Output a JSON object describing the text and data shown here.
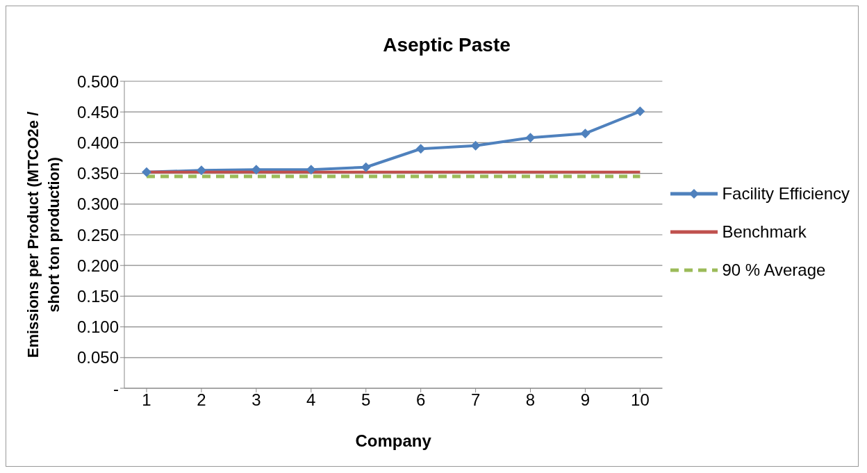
{
  "chart_data": {
    "type": "line",
    "title": "Aseptic Paste",
    "xlabel": "Company",
    "ylabel": "Emissions per Product (MTCO2e / short ton production)",
    "categories": [
      "1",
      "2",
      "3",
      "4",
      "5",
      "6",
      "7",
      "8",
      "9",
      "10"
    ],
    "series": [
      {
        "name": "Facility Efficiency",
        "color": "#4f81bd",
        "marker": "diamond",
        "line_style": "solid",
        "values": [
          0.352,
          0.355,
          0.356,
          0.356,
          0.36,
          0.39,
          0.395,
          0.408,
          0.415,
          0.451
        ]
      },
      {
        "name": "Benchmark",
        "color": "#c0504d",
        "marker": "none",
        "line_style": "solid",
        "values": [
          0.352,
          0.352,
          0.352,
          0.352,
          0.352,
          0.352,
          0.352,
          0.352,
          0.352,
          0.352
        ]
      },
      {
        "name": "90 % Average",
        "color": "#9bbb59",
        "marker": "none",
        "line_style": "dashed",
        "values": [
          0.345,
          0.345,
          0.345,
          0.345,
          0.345,
          0.345,
          0.345,
          0.345,
          0.345,
          0.345
        ]
      }
    ],
    "ylim": [
      0,
      0.5
    ],
    "yticks": [
      {
        "value": 0,
        "label": "-"
      },
      {
        "value": 0.05,
        "label": "0.050"
      },
      {
        "value": 0.1,
        "label": "0.100"
      },
      {
        "value": 0.15,
        "label": "0.150"
      },
      {
        "value": 0.2,
        "label": "0.200"
      },
      {
        "value": 0.25,
        "label": "0.250"
      },
      {
        "value": 0.3,
        "label": "0.300"
      },
      {
        "value": 0.35,
        "label": "0.350"
      },
      {
        "value": 0.4,
        "label": "0.400"
      },
      {
        "value": 0.45,
        "label": "0.450"
      },
      {
        "value": 0.5,
        "label": "0.500"
      }
    ],
    "grid": "y",
    "legend": "right"
  }
}
